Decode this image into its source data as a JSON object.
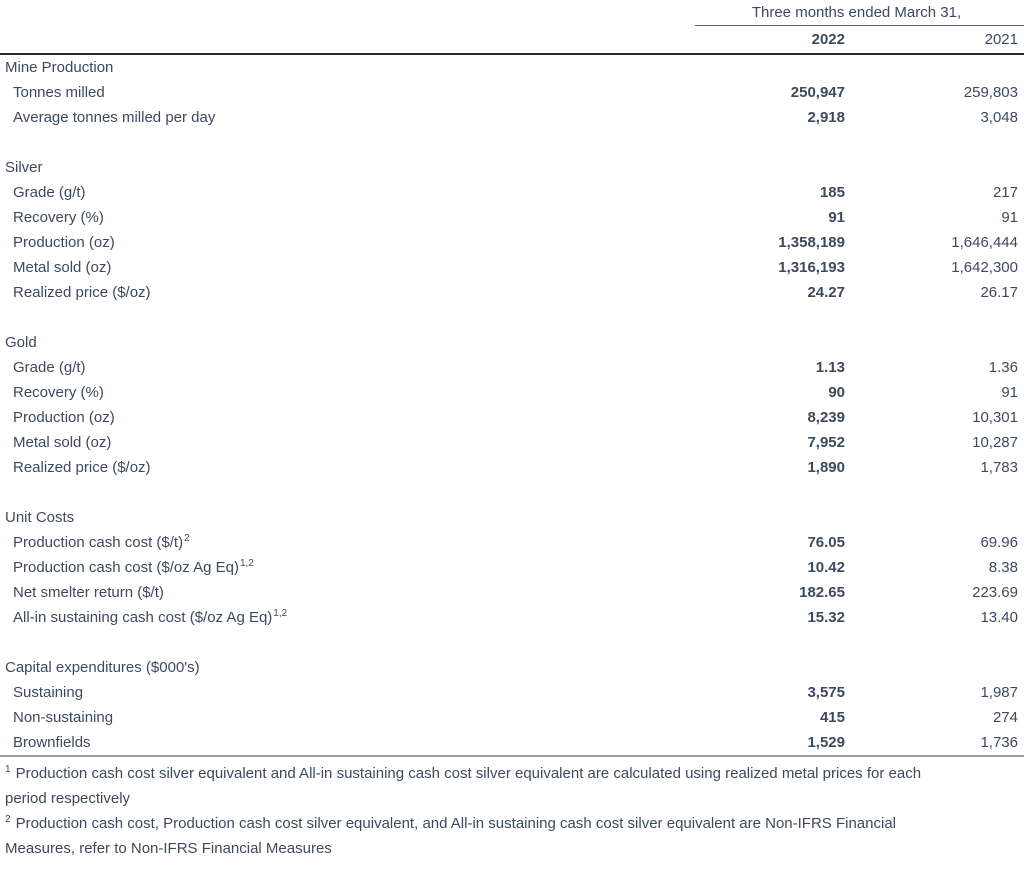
{
  "table": {
    "period_header": "Three months ended March 31,",
    "columns": [
      "2022",
      "2021"
    ],
    "sections": [
      {
        "title": "Mine Production",
        "rows": [
          {
            "label": "Tonnes milled",
            "sup": "",
            "v2022": "250,947",
            "v2021": "259,803"
          },
          {
            "label": "Average tonnes milled per day",
            "sup": "",
            "v2022": "2,918",
            "v2021": "3,048"
          }
        ]
      },
      {
        "title": "Silver",
        "rows": [
          {
            "label": "Grade (g/t)",
            "sup": "",
            "v2022": "185",
            "v2021": "217"
          },
          {
            "label": "Recovery (%)",
            "sup": "",
            "v2022": "91",
            "v2021": "91"
          },
          {
            "label": "Production (oz)",
            "sup": "",
            "v2022": "1,358,189",
            "v2021": "1,646,444"
          },
          {
            "label": "Metal sold (oz)",
            "sup": "",
            "v2022": "1,316,193",
            "v2021": "1,642,300"
          },
          {
            "label": "Realized price ($/oz)",
            "sup": "",
            "v2022": "24.27",
            "v2021": "26.17"
          }
        ]
      },
      {
        "title": "Gold",
        "rows": [
          {
            "label": "Grade (g/t)",
            "sup": "",
            "v2022": "1.13",
            "v2021": "1.36"
          },
          {
            "label": "Recovery (%)",
            "sup": "",
            "v2022": "90",
            "v2021": "91"
          },
          {
            "label": "Production (oz)",
            "sup": "",
            "v2022": "8,239",
            "v2021": "10,301"
          },
          {
            "label": "Metal sold (oz)",
            "sup": "",
            "v2022": "7,952",
            "v2021": "10,287"
          },
          {
            "label": "Realized price ($/oz)",
            "sup": "",
            "v2022": "1,890",
            "v2021": "1,783"
          }
        ]
      },
      {
        "title": "Unit Costs",
        "rows": [
          {
            "label": "Production cash cost ($/t)",
            "sup": "2",
            "v2022": "76.05",
            "v2021": "69.96"
          },
          {
            "label": "Production cash cost ($/oz Ag Eq)",
            "sup": "1,2",
            "v2022": "10.42",
            "v2021": "8.38"
          },
          {
            "label": "Net smelter return ($/t)",
            "sup": "",
            "v2022": "182.65",
            "v2021": "223.69"
          },
          {
            "label": "All-in sustaining cash cost ($/oz Ag Eq)",
            "sup": "1,2",
            "v2022": "15.32",
            "v2021": "13.40"
          }
        ]
      },
      {
        "title": "Capital expenditures ($000's)",
        "rows": [
          {
            "label": "Sustaining",
            "sup": "",
            "v2022": "3,575",
            "v2021": "1,987"
          },
          {
            "label": "Non-sustaining",
            "sup": "",
            "v2022": "415",
            "v2021": "274"
          },
          {
            "label": "Brownfields",
            "sup": "",
            "v2022": "1,529",
            "v2021": "1,736"
          }
        ]
      }
    ],
    "footnotes": [
      {
        "marker": "1",
        "text": "Production cash cost silver equivalent and All-in sustaining cash cost silver equivalent are calculated using realized metal prices for each period respectively"
      },
      {
        "marker": "2",
        "text": "Production cash cost, Production cash cost silver equivalent, and All-in sustaining cash cost silver equivalent are Non-IFRS Financial Measures, refer to Non-IFRS Financial Measures"
      }
    ],
    "colors": {
      "text": "#3c4a5d",
      "heavy_rule": "#222a35",
      "light_rule": "#9b9fa6",
      "thin_rule": "#555f6d",
      "background": "#ffffff"
    }
  }
}
